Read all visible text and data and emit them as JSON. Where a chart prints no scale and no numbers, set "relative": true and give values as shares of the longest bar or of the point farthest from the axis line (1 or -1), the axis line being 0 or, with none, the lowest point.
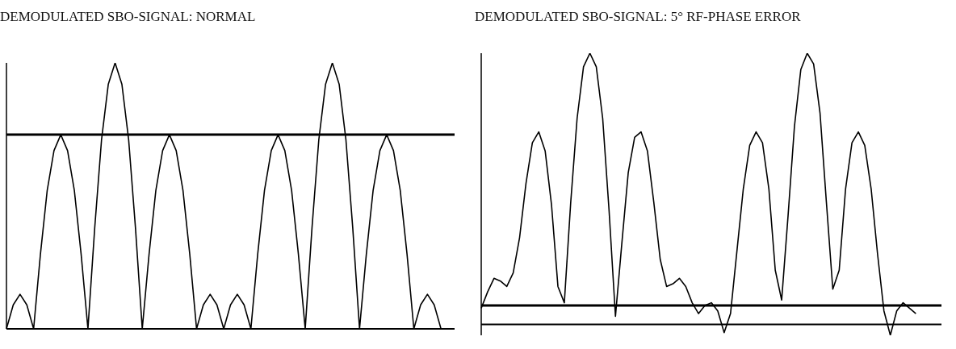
{
  "chart_data": [
    {
      "type": "line",
      "title": "DEMODULATED SBO-SIGNAL: NORMAL",
      "relative": true,
      "color": "#000000",
      "categories": [
        null,
        null,
        null,
        null,
        null,
        null,
        null,
        null,
        null,
        null,
        null,
        null,
        null,
        null,
        null,
        null,
        null,
        null,
        null,
        null,
        null,
        null,
        null,
        null,
        null,
        null,
        null,
        null,
        null,
        null,
        null,
        null,
        null,
        null,
        null,
        null,
        null,
        null,
        null,
        null,
        null,
        null,
        null,
        null,
        null,
        null,
        null,
        null,
        null,
        null,
        null,
        null,
        null,
        null,
        null,
        null,
        null,
        null,
        null,
        null,
        null,
        null,
        null,
        null,
        null,
        null,
        null
      ],
      "values": [
        0,
        0.09,
        0.13,
        0.09,
        0,
        0.28,
        0.52,
        0.67,
        0.73,
        0.67,
        0.52,
        0.28,
        0,
        0.38,
        0.71,
        0.92,
        1,
        0.92,
        0.71,
        0.38,
        0,
        0.28,
        0.52,
        0.67,
        0.73,
        0.67,
        0.52,
        0.28,
        0,
        0.09,
        0.13,
        0.09,
        0,
        0.09,
        0.13,
        0.09,
        0,
        0.28,
        0.52,
        0.67,
        0.73,
        0.67,
        0.52,
        0.28,
        0,
        0.38,
        0.71,
        0.92,
        1,
        0.92,
        0.71,
        0.38,
        0,
        0.28,
        0.52,
        0.67,
        0.73,
        0.67,
        0.52,
        0.28,
        0,
        0.09,
        0.13,
        0.09,
        0,
        null,
        null
      ],
      "ref_lines": [
        {
          "axis": "y",
          "value": 0.73,
          "color": "#000000"
        }
      ]
    },
    {
      "type": "line",
      "title": "DEMODULATED SBO-SIGNAL: 5° RF-PHASE ERROR",
      "relative": true,
      "color": "#000000",
      "categories": [
        null,
        null,
        null,
        null,
        null,
        null,
        null,
        null,
        null,
        null,
        null,
        null,
        null,
        null,
        null,
        null,
        null,
        null,
        null,
        null,
        null,
        null,
        null,
        null,
        null,
        null,
        null,
        null,
        null,
        null,
        null,
        null,
        null,
        null,
        null,
        null,
        null,
        null,
        null,
        null,
        null,
        null,
        null,
        null,
        null,
        null,
        null,
        null,
        null,
        null,
        null,
        null,
        null,
        null,
        null,
        null,
        null,
        null,
        null,
        null,
        null,
        null,
        null,
        null,
        null,
        null,
        null,
        null,
        null,
        null,
        null,
        null,
        null
      ],
      "values": [
        0.06,
        0.12,
        0.17,
        0.16,
        0.14,
        0.19,
        0.32,
        0.52,
        0.67,
        0.71,
        0.64,
        0.44,
        0.14,
        0.08,
        0.45,
        0.76,
        0.95,
        1,
        0.95,
        0.76,
        0.42,
        0.03,
        0.3,
        0.56,
        0.69,
        0.71,
        0.64,
        0.45,
        0.24,
        0.14,
        0.15,
        0.17,
        0.14,
        0.08,
        0.04,
        0.07,
        0.08,
        0.05,
        -0.03,
        0.04,
        0.27,
        0.5,
        0.66,
        0.71,
        0.67,
        0.5,
        0.2,
        0.09,
        0.4,
        0.73,
        0.94,
        1,
        0.96,
        0.78,
        0.45,
        0.13,
        0.2,
        0.5,
        0.67,
        0.71,
        0.66,
        0.5,
        0.26,
        0.05,
        -0.04,
        0.05,
        0.08,
        0.06,
        0.04,
        null,
        null,
        null,
        null
      ],
      "ref_lines": [
        {
          "axis": "y",
          "value": 0.07,
          "color": "#000000"
        }
      ]
    }
  ]
}
